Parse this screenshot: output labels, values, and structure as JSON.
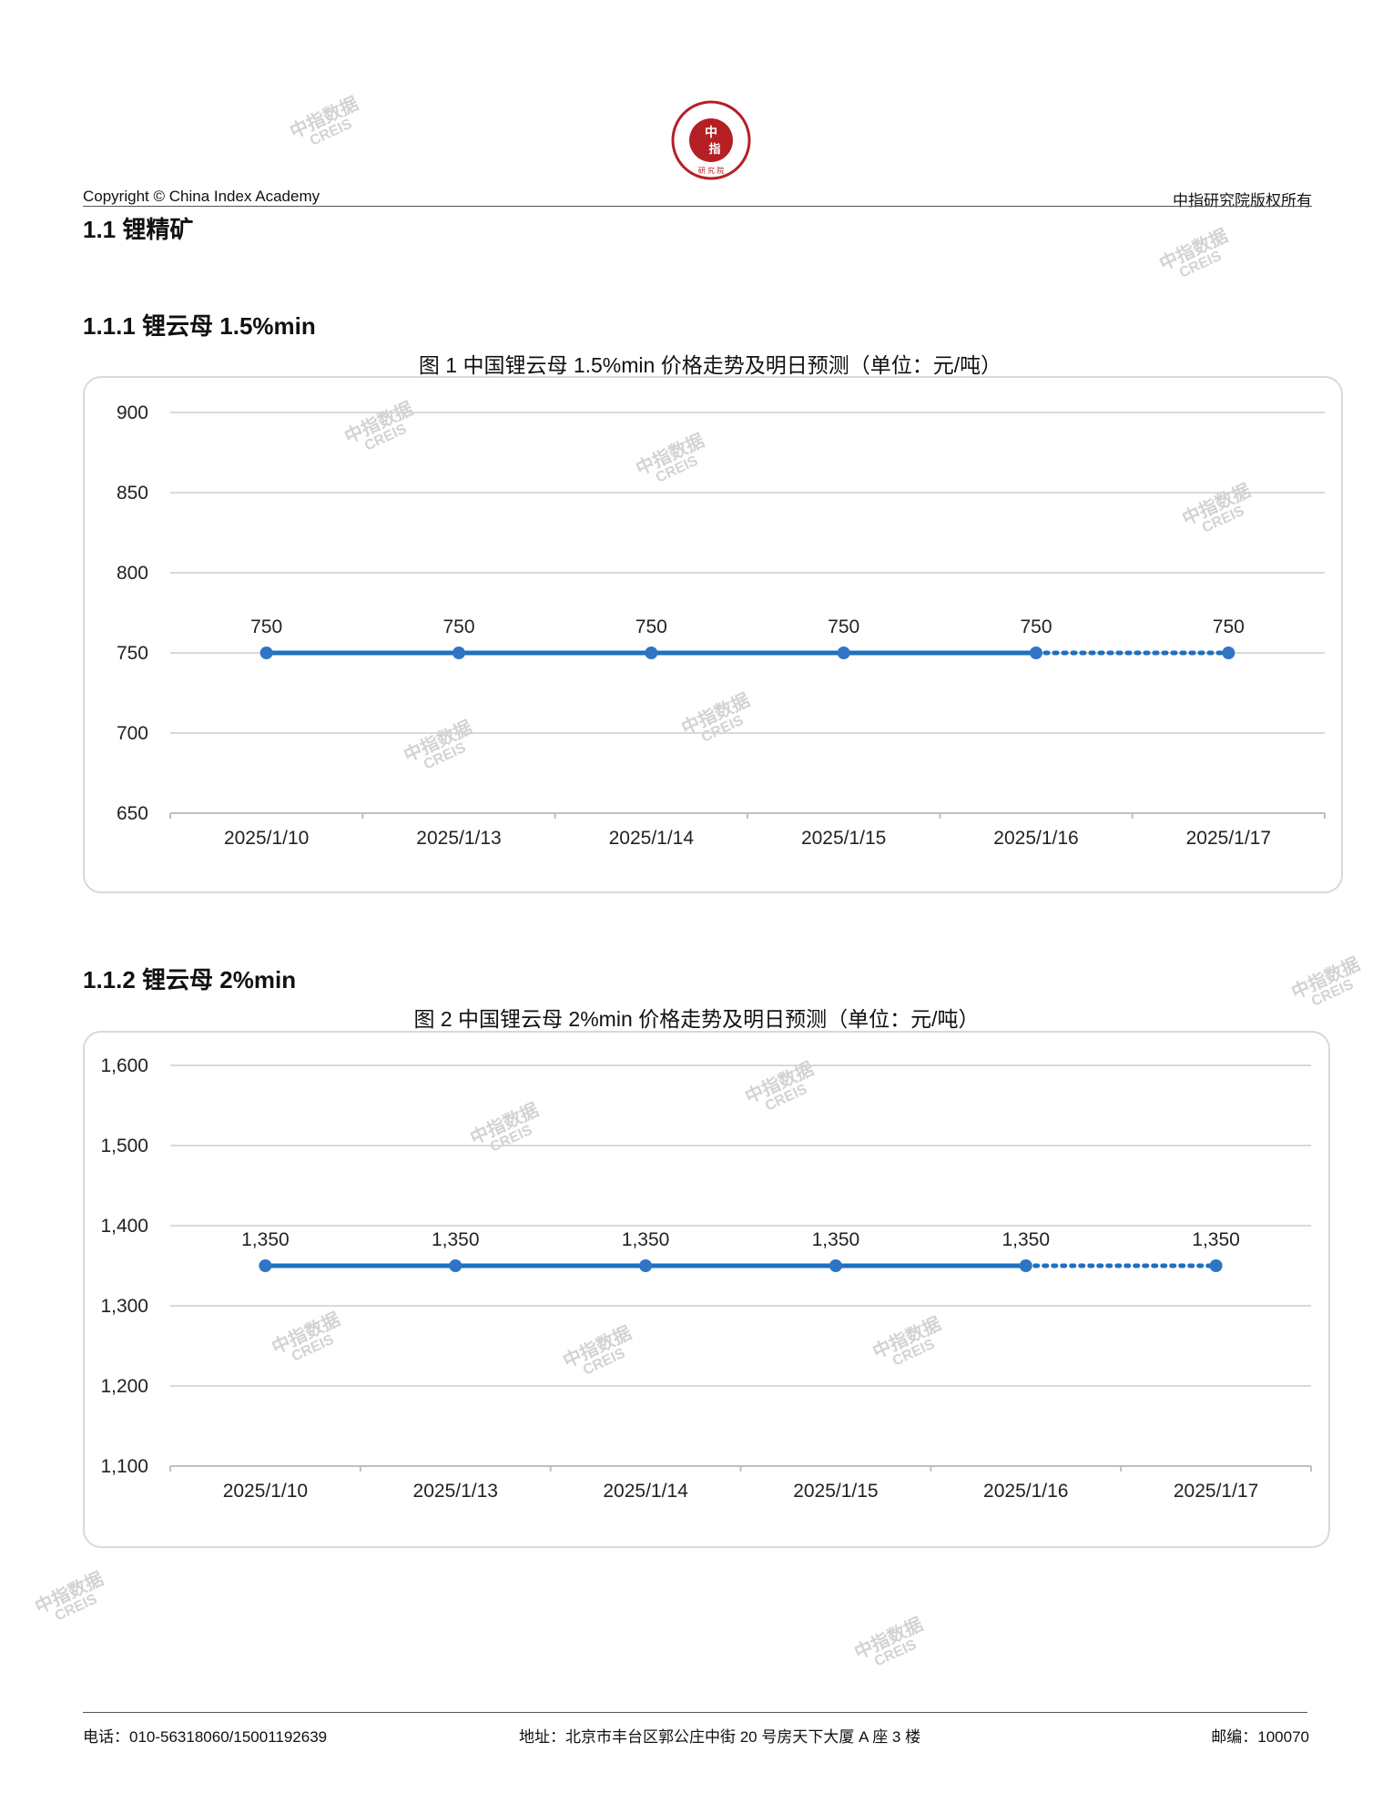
{
  "header": {
    "copyright": "Copyright © China Index Academy",
    "rights": "中指研究院版权所有",
    "logo_text": "CHINA INDEX ACADEMY 中指 研究院"
  },
  "section": {
    "title": "1.1 锂精矿"
  },
  "sub1": {
    "title": "1.1.1 锂云母 1.5%min"
  },
  "sub2": {
    "title": "1.1.2 锂云母 2%min"
  },
  "watermark": {
    "cn": "中指数据",
    "en": "CREIS"
  },
  "chart_data": [
    {
      "type": "line",
      "title": "图 1 中国锂云母 1.5%min 价格走势及明日预测（单位：元/吨）",
      "categories": [
        "2025/1/10",
        "2025/1/13",
        "2025/1/14",
        "2025/1/15",
        "2025/1/16",
        "2025/1/17"
      ],
      "values": [
        750,
        750,
        750,
        750,
        750,
        750
      ],
      "data_labels": [
        "750",
        "750",
        "750",
        "750",
        "750",
        "750"
      ],
      "forecast_last": true,
      "ylim": [
        650,
        900
      ],
      "yticks": [
        650,
        700,
        750,
        800,
        850,
        900
      ],
      "ytick_labels": [
        "650",
        "700",
        "750",
        "800",
        "850",
        "900"
      ],
      "grid": true,
      "color": "#1f6fbf"
    },
    {
      "type": "line",
      "title": "图 2 中国锂云母 2%min 价格走势及明日预测（单位：元/吨）",
      "categories": [
        "2025/1/10",
        "2025/1/13",
        "2025/1/14",
        "2025/1/15",
        "2025/1/16",
        "2025/1/17"
      ],
      "values": [
        1350,
        1350,
        1350,
        1350,
        1350,
        1350
      ],
      "data_labels": [
        "1,350",
        "1,350",
        "1,350",
        "1,350",
        "1,350",
        "1,350"
      ],
      "forecast_last": true,
      "ylim": [
        1100,
        1600
      ],
      "yticks": [
        1100,
        1200,
        1300,
        1400,
        1500,
        1600
      ],
      "ytick_labels": [
        "1,100",
        "1,200",
        "1,300",
        "1,400",
        "1,500",
        "1,600"
      ],
      "grid": true,
      "color": "#1f6fbf"
    }
  ],
  "footer": {
    "phone": "电话：010-56318060/15001192639",
    "address": "地址：北京市丰台区郭公庄中街 20 号房天下大厦 A 座 3 楼",
    "postcode": "邮编：100070"
  }
}
